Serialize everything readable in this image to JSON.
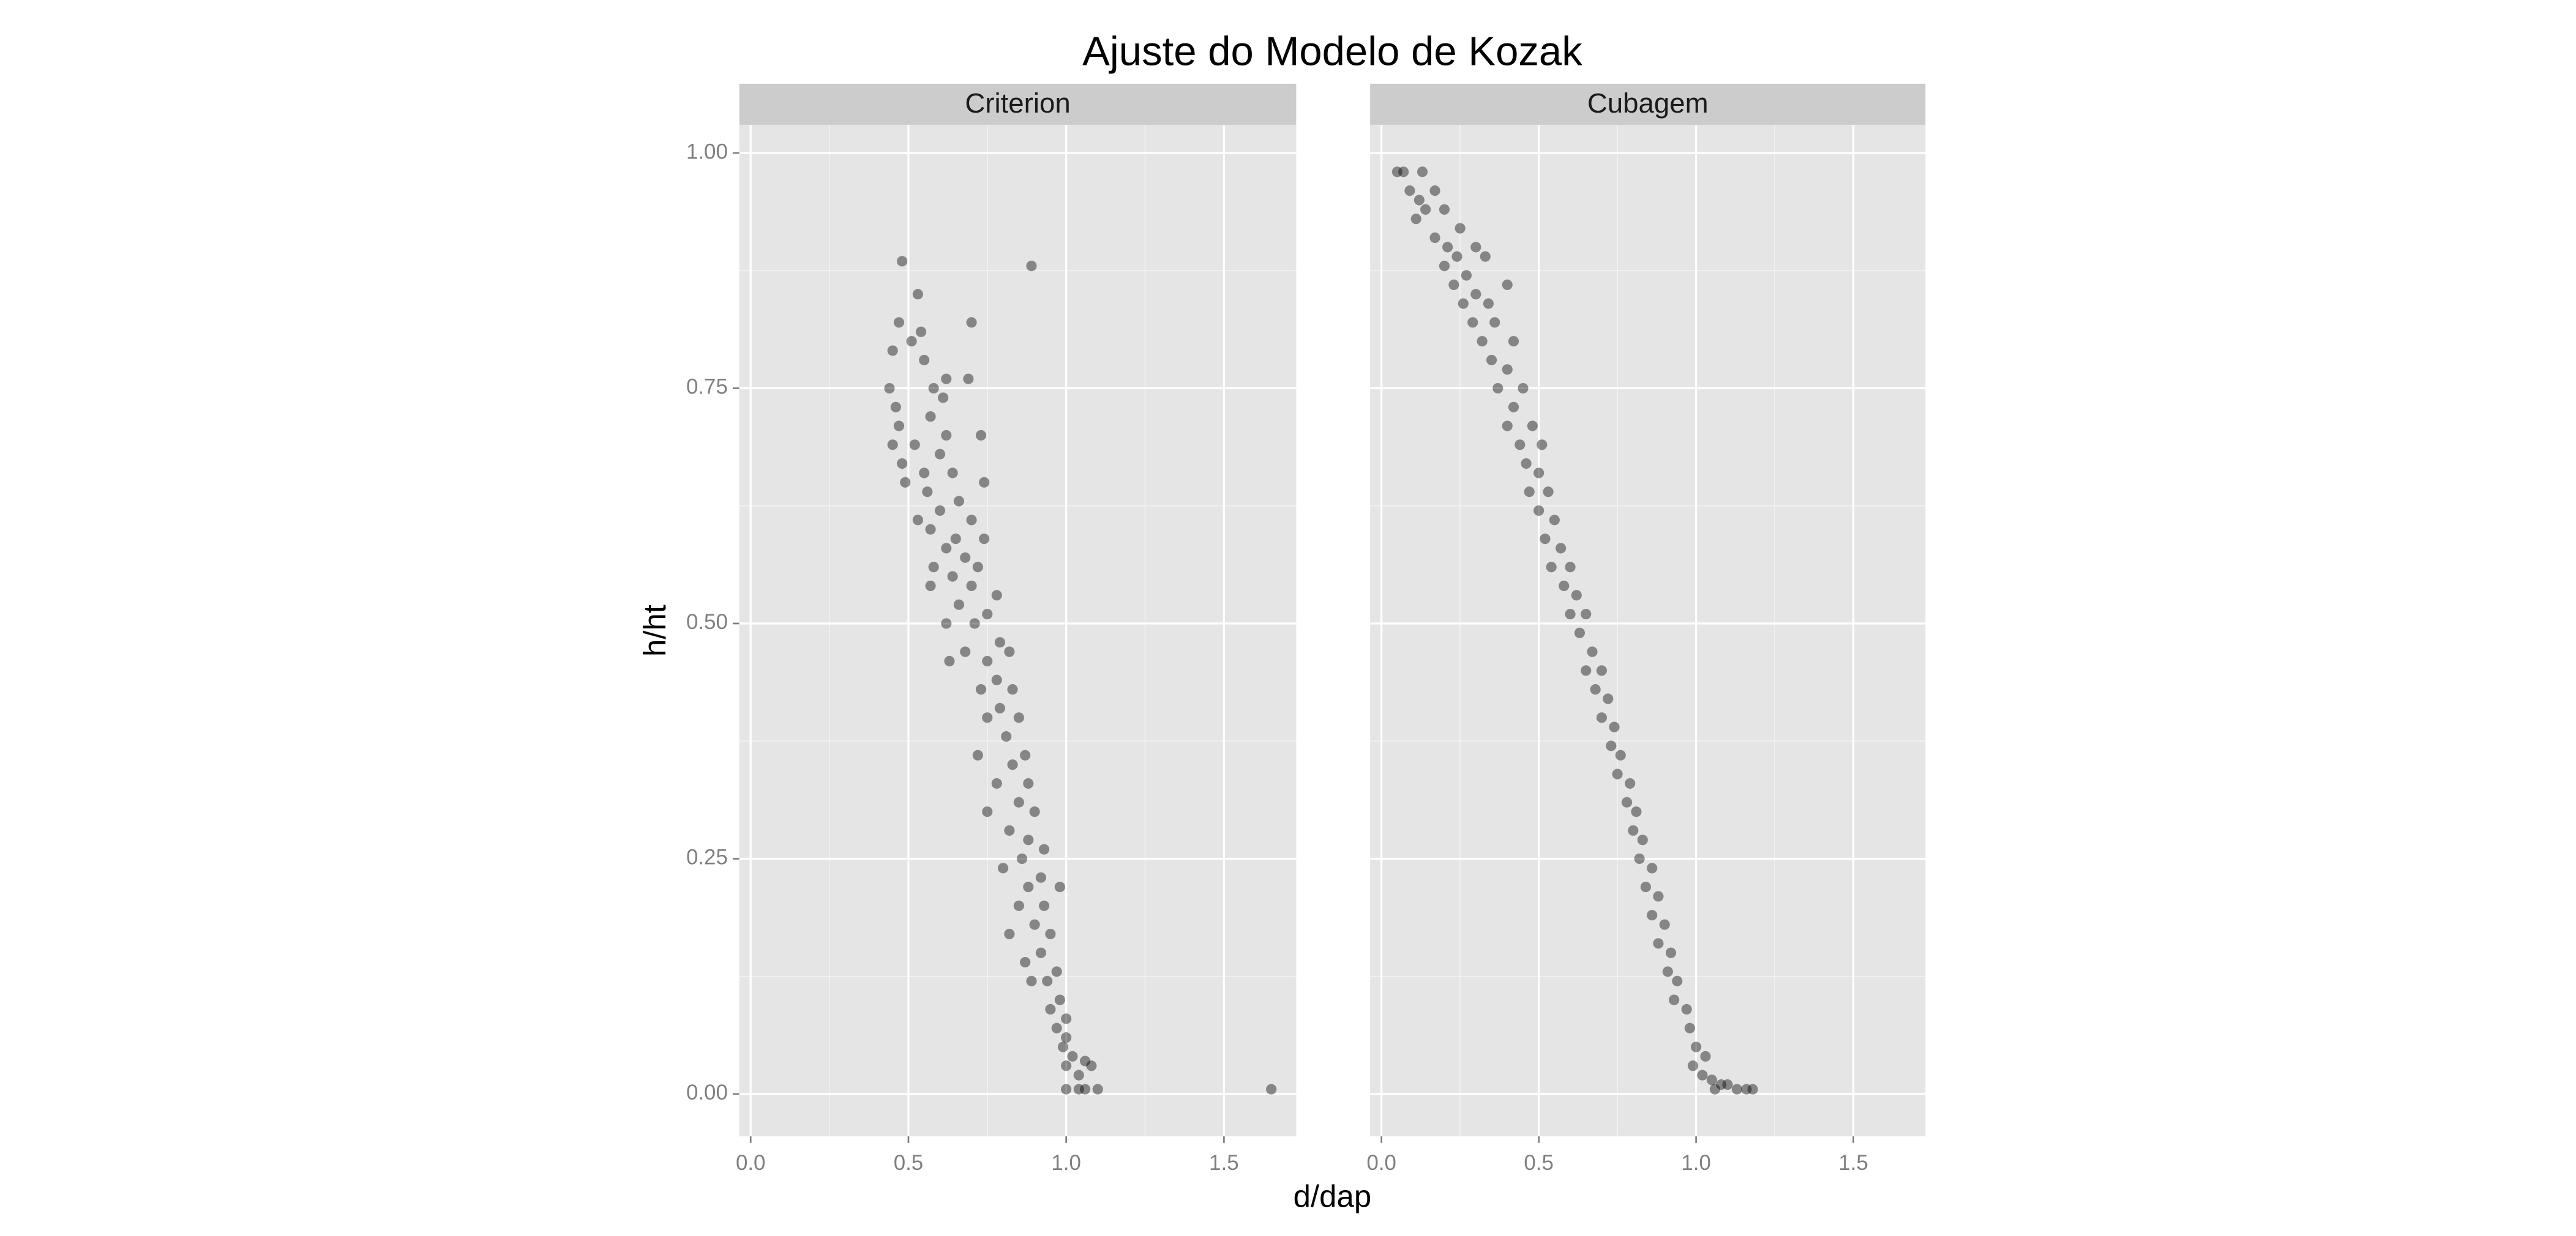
{
  "title": "Ajuste do Modelo de Kozak",
  "x_label": "d/dap",
  "y_label": "h/ht",
  "chart_data": [
    {
      "type": "scatter",
      "title": "Criterion",
      "color": "#000000",
      "grid": true,
      "xlim": [
        -0.036,
        1.729
      ],
      "ylim": [
        -0.045,
        1.03
      ],
      "xticks": [
        {
          "value": 0,
          "label": "0.0"
        },
        0.5,
        {
          "value": 1,
          "label": "1.0"
        },
        1.5
      ],
      "yticks": [
        {
          "value": 0,
          "label": "0.00"
        },
        0.25,
        {
          "value": 0.5,
          "label": "0.50"
        },
        0.75,
        {
          "value": 1,
          "label": "1.00"
        }
      ],
      "x": [
        0.48,
        0.89,
        0.53,
        0.7,
        0.47,
        0.54,
        0.45,
        0.51,
        0.55,
        0.62,
        0.69,
        0.44,
        0.58,
        0.46,
        0.61,
        0.57,
        0.47,
        0.62,
        0.73,
        0.52,
        0.45,
        0.48,
        0.6,
        0.64,
        0.55,
        0.49,
        0.74,
        0.56,
        0.66,
        0.6,
        0.53,
        0.7,
        0.57,
        0.65,
        0.74,
        0.62,
        0.68,
        0.58,
        0.72,
        0.64,
        0.57,
        0.7,
        0.78,
        0.66,
        0.75,
        0.62,
        0.71,
        0.79,
        0.68,
        0.75,
        0.82,
        0.63,
        0.78,
        0.73,
        0.83,
        0.79,
        0.75,
        0.85,
        0.81,
        0.72,
        0.87,
        0.83,
        0.78,
        0.88,
        0.85,
        0.75,
        0.9,
        0.82,
        0.88,
        0.93,
        0.86,
        0.8,
        0.92,
        0.88,
        0.98,
        0.85,
        0.93,
        0.9,
        0.82,
        0.95,
        0.92,
        0.87,
        0.97,
        0.94,
        0.89,
        0.98,
        0.95,
        1.0,
        0.97,
        1.0,
        0.99,
        1.02,
        1.06,
        1.0,
        1.04,
        1.08,
        1.0,
        1.04,
        1.06,
        1.1,
        1.65
      ],
      "values": [
        0.885,
        0.88,
        0.85,
        0.82,
        0.82,
        0.81,
        0.79,
        0.8,
        0.78,
        0.76,
        0.76,
        0.75,
        0.75,
        0.73,
        0.74,
        0.72,
        0.71,
        0.7,
        0.7,
        0.69,
        0.69,
        0.67,
        0.68,
        0.66,
        0.66,
        0.65,
        0.65,
        0.64,
        0.63,
        0.62,
        0.61,
        0.61,
        0.6,
        0.59,
        0.59,
        0.58,
        0.57,
        0.56,
        0.56,
        0.55,
        0.54,
        0.54,
        0.53,
        0.52,
        0.51,
        0.5,
        0.5,
        0.48,
        0.47,
        0.46,
        0.47,
        0.46,
        0.44,
        0.43,
        0.43,
        0.41,
        0.4,
        0.4,
        0.38,
        0.36,
        0.36,
        0.35,
        0.33,
        0.33,
        0.31,
        0.3,
        0.3,
        0.28,
        0.27,
        0.26,
        0.25,
        0.24,
        0.23,
        0.22,
        0.22,
        0.2,
        0.2,
        0.18,
        0.17,
        0.17,
        0.15,
        0.14,
        0.13,
        0.12,
        0.12,
        0.1,
        0.09,
        0.08,
        0.07,
        0.06,
        0.05,
        0.04,
        0.035,
        0.03,
        0.02,
        0.03,
        0.005,
        0.005,
        0.005,
        0.005,
        0.005
      ]
    },
    {
      "type": "scatter",
      "title": "Cubagem",
      "color": "#000000",
      "grid": true,
      "xlim": [
        -0.036,
        1.729
      ],
      "ylim": [
        -0.045,
        1.03
      ],
      "xticks": [
        {
          "value": 0,
          "label": "0.0"
        },
        0.5,
        {
          "value": 1,
          "label": "1.0"
        },
        1.5
      ],
      "yticks": [
        0,
        0.25,
        0.5,
        0.75,
        1
      ],
      "x": [
        0.05,
        0.07,
        0.13,
        0.09,
        0.17,
        0.12,
        0.14,
        0.2,
        0.11,
        0.25,
        0.17,
        0.21,
        0.3,
        0.24,
        0.33,
        0.2,
        0.27,
        0.23,
        0.3,
        0.26,
        0.34,
        0.4,
        0.29,
        0.36,
        0.32,
        0.42,
        0.35,
        0.4,
        0.37,
        0.45,
        0.42,
        0.4,
        0.48,
        0.44,
        0.51,
        0.46,
        0.5,
        0.47,
        0.53,
        0.5,
        0.55,
        0.52,
        0.57,
        0.54,
        0.6,
        0.58,
        0.62,
        0.6,
        0.65,
        0.63,
        0.67,
        0.65,
        0.7,
        0.68,
        0.72,
        0.7,
        0.74,
        0.73,
        0.76,
        0.75,
        0.79,
        0.78,
        0.81,
        0.8,
        0.83,
        0.82,
        0.86,
        0.84,
        0.88,
        0.86,
        0.9,
        0.88,
        0.92,
        0.91,
        0.94,
        0.93,
        0.97,
        0.98,
        1.0,
        0.99,
        1.03,
        1.02,
        1.05,
        1.08,
        1.1,
        1.13,
        1.16,
        1.18,
        1.06
      ],
      "values": [
        0.98,
        0.98,
        0.98,
        0.96,
        0.96,
        0.95,
        0.94,
        0.94,
        0.93,
        0.92,
        0.91,
        0.9,
        0.9,
        0.89,
        0.89,
        0.88,
        0.87,
        0.86,
        0.85,
        0.84,
        0.84,
        0.86,
        0.82,
        0.82,
        0.8,
        0.8,
        0.78,
        0.77,
        0.75,
        0.75,
        0.73,
        0.71,
        0.71,
        0.69,
        0.69,
        0.67,
        0.66,
        0.64,
        0.64,
        0.62,
        0.61,
        0.59,
        0.58,
        0.56,
        0.56,
        0.54,
        0.53,
        0.51,
        0.51,
        0.49,
        0.47,
        0.45,
        0.45,
        0.43,
        0.42,
        0.4,
        0.39,
        0.37,
        0.36,
        0.34,
        0.33,
        0.31,
        0.3,
        0.28,
        0.27,
        0.25,
        0.24,
        0.22,
        0.21,
        0.19,
        0.18,
        0.16,
        0.15,
        0.13,
        0.12,
        0.1,
        0.09,
        0.07,
        0.05,
        0.03,
        0.04,
        0.02,
        0.015,
        0.01,
        0.01,
        0.005,
        0.005,
        0.005,
        0.005
      ]
    }
  ]
}
